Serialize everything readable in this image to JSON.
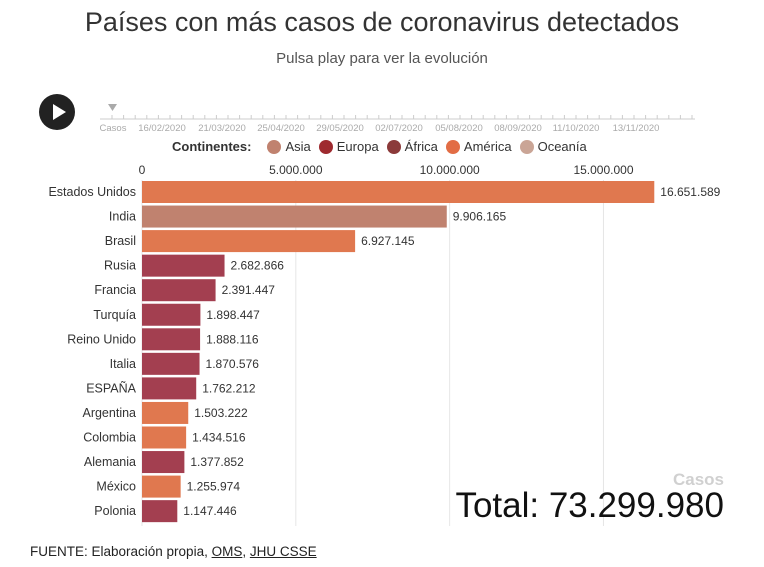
{
  "header": {
    "title": "Países con más casos de coronavirus detectados",
    "subtitle": "Pulsa play para ver la evolución"
  },
  "timeline": {
    "labels": [
      "Casos",
      "16/02/2020",
      "21/03/2020",
      "25/04/2020",
      "29/05/2020",
      "02/07/2020",
      "05/08/2020",
      "08/09/2020",
      "11/10/2020",
      "13/11/2020"
    ]
  },
  "legend": {
    "title": "Continentes:",
    "items": [
      {
        "label": "Asia",
        "color": "#c0826f"
      },
      {
        "label": "Europa",
        "color": "#9e2a2f"
      },
      {
        "label": "África",
        "color": "#8b3a3a"
      },
      {
        "label": "América",
        "color": "#e26d45"
      },
      {
        "label": "Oceanía",
        "color": "#caa596"
      }
    ]
  },
  "chart_data": {
    "type": "bar",
    "orientation": "horizontal",
    "title": "Países con más casos de coronavirus detectados",
    "subtitle": "Pulsa play para ver la evolución",
    "x_ticks": [
      "0",
      "5.000.000",
      "10.000.000",
      "15.000.000"
    ],
    "xlim": [
      0,
      17000000
    ],
    "grid": true,
    "categories": [
      "Estados Unidos",
      "India",
      "Brasil",
      "Rusia",
      "Francia",
      "Turquía",
      "Reino Unido",
      "Italia",
      "ESPAÑA",
      "Argentina",
      "Colombia",
      "Alemania",
      "México",
      "Polonia"
    ],
    "values": [
      16651589,
      9906165,
      6927145,
      2682866,
      2391447,
      1898447,
      1888116,
      1870576,
      1762212,
      1503222,
      1434516,
      1377852,
      1255974,
      1147446
    ],
    "value_labels": [
      "16.651.589",
      "9.906.165",
      "6.927.145",
      "2.682.866",
      "2.391.447",
      "1.898.447",
      "1.888.116",
      "1.870.576",
      "1.762.212",
      "1.503.222",
      "1.434.516",
      "1.377.852",
      "1.255.974",
      "1.147.446"
    ],
    "colors": [
      "#e0784f",
      "#c0826f",
      "#e0784f",
      "#a33f50",
      "#a33f50",
      "#a33f50",
      "#a33f50",
      "#a33f50",
      "#a33f50",
      "#e0784f",
      "#e0784f",
      "#a33f50",
      "#e0784f",
      "#a33f50"
    ]
  },
  "total": {
    "label": "Casos",
    "text": "Total: 73.299.980"
  },
  "source": {
    "prefix": "FUENTE: Elaboración propia, ",
    "link1": "OMS",
    "sep": ", ",
    "link2": "JHU CSSE"
  }
}
